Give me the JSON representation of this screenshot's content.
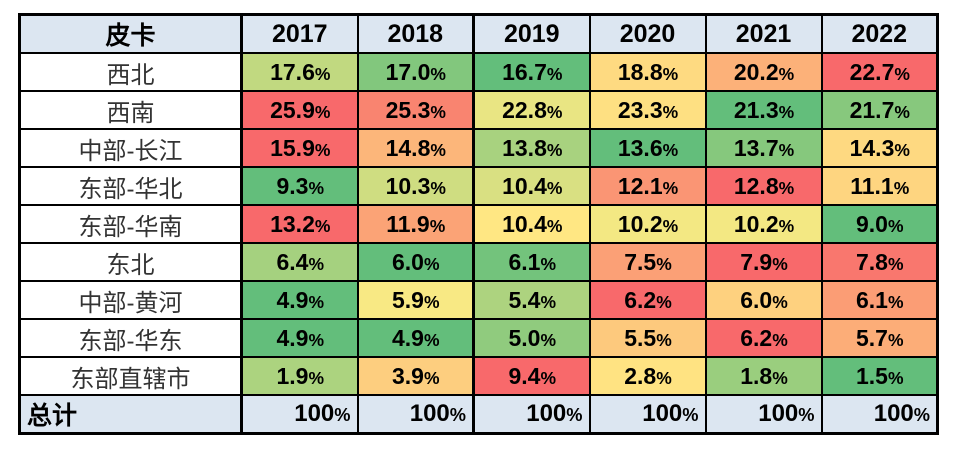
{
  "chart_data": {
    "type": "heatmap",
    "title": "皮卡",
    "columns": [
      "2017",
      "2018",
      "2019",
      "2020",
      "2021",
      "2022"
    ],
    "rows": [
      "西北",
      "西南",
      "中部-长江",
      "东部-华北",
      "东部-华南",
      "东北",
      "中部-黄河",
      "东部-华东",
      "东部直辖市"
    ],
    "series": [
      {
        "name": "西北",
        "values": [
          17.6,
          17.0,
          16.7,
          18.8,
          20.2,
          22.7
        ],
        "labels": [
          "17.6%",
          "17.0%",
          "16.7%",
          "18.8%",
          "20.2%",
          "22.7%"
        ]
      },
      {
        "name": "西南",
        "values": [
          25.9,
          25.3,
          22.8,
          23.3,
          21.3,
          21.7
        ],
        "labels": [
          "25.9%",
          "25.3%",
          "22.8%",
          "23.3%",
          "21.3%",
          "21.7%"
        ]
      },
      {
        "name": "中部-长江",
        "values": [
          15.9,
          14.8,
          13.8,
          13.6,
          13.7,
          14.3
        ],
        "labels": [
          "15.9%",
          "14.8%",
          "13.8%",
          "13.6%",
          "13.7%",
          "14.3%"
        ]
      },
      {
        "name": "东部-华北",
        "values": [
          9.3,
          10.3,
          10.4,
          12.1,
          12.8,
          11.1
        ],
        "labels": [
          "9.3%",
          "10.3%",
          "10.4%",
          "12.1%",
          "12.8%",
          "11.1%"
        ]
      },
      {
        "name": "东部-华南",
        "values": [
          13.2,
          11.9,
          10.4,
          10.2,
          10.2,
          9.0
        ],
        "labels": [
          "13.2%",
          "11.9%",
          "10.4%",
          "10.2%",
          "10.2%",
          "9.0%"
        ]
      },
      {
        "name": "东北",
        "values": [
          6.4,
          6.0,
          6.1,
          7.5,
          7.9,
          7.8
        ],
        "labels": [
          "6.4%",
          "6.0%",
          "6.1%",
          "7.5%",
          "7.9%",
          "7.8%"
        ]
      },
      {
        "name": "中部-黄河",
        "values": [
          4.9,
          5.9,
          5.4,
          6.2,
          6.0,
          6.1
        ],
        "labels": [
          "4.9%",
          "5.9%",
          "5.4%",
          "6.2%",
          "6.0%",
          "6.1%"
        ]
      },
      {
        "name": "东部-华东",
        "values": [
          4.9,
          4.9,
          5.0,
          5.5,
          6.2,
          5.7
        ],
        "labels": [
          "4.9%",
          "4.9%",
          "5.0%",
          "5.5%",
          "6.2%",
          "5.7%"
        ]
      },
      {
        "name": "东部直辖市",
        "values": [
          1.9,
          3.9,
          9.4,
          2.8,
          1.8,
          1.5
        ],
        "labels": [
          "1.9%",
          "3.9%",
          "9.4%",
          "2.8%",
          "1.8%",
          "1.5%"
        ]
      }
    ],
    "total_row": {
      "label": "总计",
      "values": [
        100,
        100,
        100,
        100,
        100,
        100
      ],
      "labels": [
        "100%",
        "100%",
        "100%",
        "100%",
        "100%",
        "100%"
      ]
    },
    "color_scale": {
      "type": "3-color",
      "scope": "per-row",
      "midpoint": "median",
      "low": "#63BE7B",
      "mid": "#FFEB84",
      "high": "#F8696B"
    },
    "legend": "none",
    "grid": "all-borders"
  },
  "table": {
    "colors": {
      "page_bg": "#FFFFFF",
      "header_bg": "#DCE6F1",
      "total_bg": "#DCE6F1",
      "border": "#000000",
      "region_text": "#333333",
      "value_text": "#000000"
    },
    "thick_separator_after_columns": [
      "region",
      "2018"
    ]
  }
}
